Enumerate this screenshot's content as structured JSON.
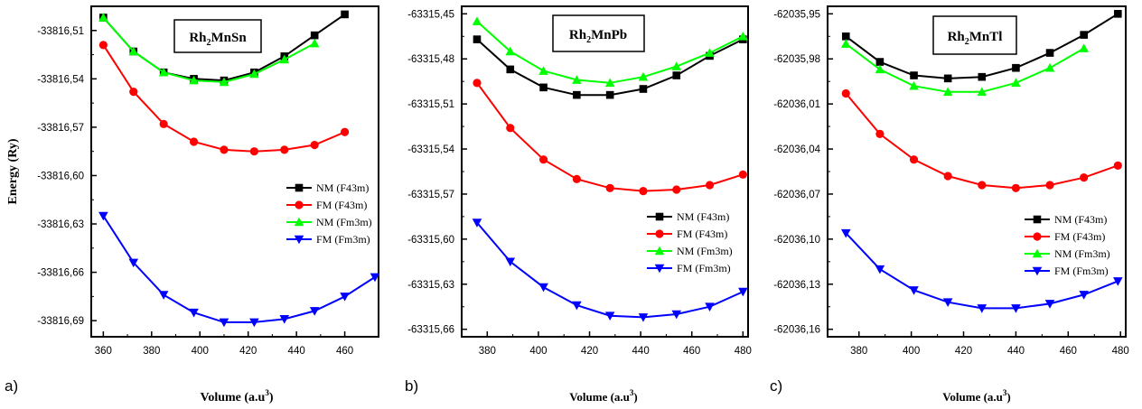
{
  "colors": {
    "NM_F43m": "#000000",
    "FM_F43m": "#ff0000",
    "NM_Fm3m": "#00ff00",
    "FM_Fm3m": "#0000ff"
  },
  "chart_data": [
    {
      "type": "line",
      "panel_label": "a)",
      "title": "Rh",
      "title_sub": "2",
      "title_rest": "MnSn",
      "xlabel": "Volume (a.u",
      "xlabel_sup": "3",
      "xlabel_end": ")",
      "ylabel": "Energy (Ry)",
      "xlim": [
        355,
        474
      ],
      "ylim": [
        -33816.7,
        -33816.495
      ],
      "xticks": [
        360,
        380,
        400,
        420,
        440,
        460
      ],
      "xtick_labels": [
        "360",
        "380",
        "400",
        "420",
        "440",
        "460"
      ],
      "yticks": [
        -33816.51,
        -33816.54,
        -33816.57,
        -33816.6,
        -33816.63,
        -33816.66,
        -33816.69
      ],
      "ytick_labels": [
        "-33816,51",
        "-33816,54",
        "-33816,57",
        "-33816,60",
        "-33816,63",
        "-33816,66",
        "-33816,69"
      ],
      "legend_position": "center-right",
      "series": [
        {
          "name": "NM (F43m)",
          "marker": "square",
          "x": [
            360,
            372.5,
            385,
            397.5,
            410,
            422.5,
            435,
            447.5,
            460
          ],
          "y": [
            -33816.502,
            -33816.523,
            -33816.536,
            -33816.54,
            -33816.541,
            -33816.536,
            -33816.526,
            -33816.513,
            -33816.5
          ]
        },
        {
          "name": "FM (F43m)",
          "marker": "circle",
          "x": [
            360,
            372.5,
            385,
            397.5,
            410,
            422.5,
            435,
            447.5,
            460
          ],
          "y": [
            -33816.519,
            -33816.548,
            -33816.568,
            -33816.579,
            -33816.584,
            -33816.585,
            -33816.584,
            -33816.581,
            -33816.573
          ]
        },
        {
          "name": "NM (Fm3m)",
          "marker": "triangle-up",
          "x": [
            360,
            372.5,
            385,
            397.5,
            410,
            422.5,
            435,
            447.5
          ],
          "y": [
            -33816.502,
            -33816.523,
            -33816.536,
            -33816.541,
            -33816.542,
            -33816.537,
            -33816.528,
            -33816.518
          ]
        },
        {
          "name": "FM (Fm3m)",
          "marker": "triangle-down",
          "x": [
            360,
            372.5,
            385,
            397.5,
            410,
            422.5,
            435,
            447.5,
            460,
            472.5
          ],
          "y": [
            -33816.625,
            -33816.654,
            -33816.674,
            -33816.685,
            -33816.691,
            -33816.691,
            -33816.689,
            -33816.684,
            -33816.675,
            -33816.663
          ]
        }
      ]
    },
    {
      "type": "line",
      "panel_label": "b)",
      "title": "Rh",
      "title_sub": "2",
      "title_rest": "MnPb",
      "xlabel": "Volume (a.u",
      "xlabel_sup": "3",
      "xlabel_end": ")",
      "ylabel": "",
      "xlim": [
        370,
        482
      ],
      "ylim": [
        -63315.665,
        -63315.445
      ],
      "xticks": [
        380,
        400,
        420,
        440,
        460,
        480
      ],
      "xtick_labels": [
        "380",
        "400",
        "420",
        "440",
        "460",
        "480"
      ],
      "yticks": [
        -63315.45,
        -63315.48,
        -63315.51,
        -63315.54,
        -63315.57,
        -63315.6,
        -63315.63,
        -63315.66
      ],
      "ytick_labels": [
        "-63315,45",
        "-63315,48",
        "-63315,51",
        "-63315,54",
        "-63315,57",
        "-63315,60",
        "-63315,63",
        "-63315,66"
      ],
      "legend_position": "center-right",
      "series": [
        {
          "name": "NM (F43m)",
          "marker": "square",
          "x": [
            376,
            389,
            402,
            415,
            428,
            441,
            454,
            467,
            480
          ],
          "y": [
            -63315.467,
            -63315.487,
            -63315.499,
            -63315.504,
            -63315.504,
            -63315.5,
            -63315.491,
            -63315.478,
            -63315.467
          ]
        },
        {
          "name": "FM (F43m)",
          "marker": "circle",
          "x": [
            376,
            389,
            402,
            415,
            428,
            441,
            454,
            467,
            480
          ],
          "y": [
            -63315.496,
            -63315.526,
            -63315.547,
            -63315.56,
            -63315.566,
            -63315.568,
            -63315.567,
            -63315.564,
            -63315.557
          ]
        },
        {
          "name": "NM (Fm3m)",
          "marker": "triangle-up",
          "x": [
            376,
            389,
            402,
            415,
            428,
            441,
            454,
            467,
            480
          ],
          "y": [
            -63315.455,
            -63315.475,
            -63315.488,
            -63315.494,
            -63315.496,
            -63315.492,
            -63315.485,
            -63315.476,
            -63315.465
          ]
        },
        {
          "name": "FM (Fm3m)",
          "marker": "triangle-down",
          "x": [
            376,
            389,
            402,
            415,
            428,
            441,
            454,
            467,
            480
          ],
          "y": [
            -63315.589,
            -63315.615,
            -63315.632,
            -63315.644,
            -63315.651,
            -63315.652,
            -63315.65,
            -63315.645,
            -63315.635
          ]
        }
      ]
    },
    {
      "type": "line",
      "panel_label": "c)",
      "title": "Rh",
      "title_sub": "2",
      "title_rest": "MnTl",
      "xlabel": "Volume (a.u",
      "xlabel_sup": "3",
      "xlabel_end": ")",
      "ylabel": "",
      "xlim": [
        368,
        482
      ],
      "ylim": [
        -62036.165,
        -62035.945
      ],
      "xticks": [
        380,
        400,
        420,
        440,
        460,
        480
      ],
      "xtick_labels": [
        "380",
        "400",
        "420",
        "440",
        "460",
        "480"
      ],
      "yticks": [
        -62035.95,
        -62035.98,
        -62036.01,
        -62036.04,
        -62036.07,
        -62036.1,
        -62036.13,
        -62036.16
      ],
      "ytick_labels": [
        "-62035,95",
        "-62035,98",
        "-62036,01",
        "-62036,04",
        "-62036,07",
        "-62036,10",
        "-62036,13",
        "-62036,16"
      ],
      "legend_position": "center-right",
      "series": [
        {
          "name": "NM (F43m)",
          "marker": "square",
          "x": [
            375,
            388,
            401,
            414,
            427,
            440,
            453,
            466,
            479
          ],
          "y": [
            -62035.965,
            -62035.982,
            -62035.991,
            -62035.993,
            -62035.992,
            -62035.986,
            -62035.976,
            -62035.964,
            -62035.95
          ]
        },
        {
          "name": "FM (F43m)",
          "marker": "circle",
          "x": [
            375,
            388,
            401,
            414,
            427,
            440,
            453,
            466,
            479
          ],
          "y": [
            -62036.003,
            -62036.03,
            -62036.047,
            -62036.058,
            -62036.064,
            -62036.066,
            -62036.064,
            -62036.059,
            -62036.051
          ]
        },
        {
          "name": "NM (Fm3m)",
          "marker": "triangle-up",
          "x": [
            375,
            388,
            401,
            414,
            427,
            440,
            453,
            466
          ],
          "y": [
            -62035.97,
            -62035.987,
            -62035.998,
            -62036.002,
            -62036.002,
            -62035.996,
            -62035.986,
            -62035.973
          ]
        },
        {
          "name": "FM (Fm3m)",
          "marker": "triangle-down",
          "x": [
            375,
            388,
            401,
            414,
            427,
            440,
            453,
            466,
            479
          ],
          "y": [
            -62036.096,
            -62036.12,
            -62036.134,
            -62036.142,
            -62036.146,
            -62036.146,
            -62036.143,
            -62036.137,
            -62036.128
          ]
        }
      ]
    }
  ]
}
